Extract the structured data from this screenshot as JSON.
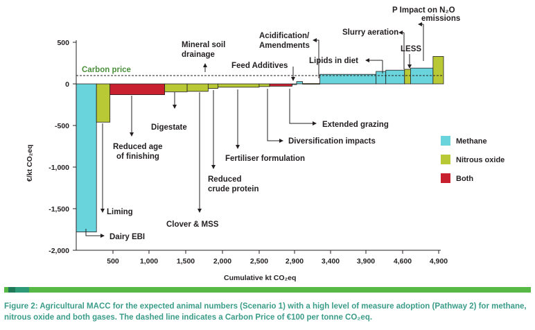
{
  "colors": {
    "methane": "#6ad4dc",
    "nitrous_oxide": "#b8c935",
    "both": "#c8202e",
    "bar_edge": "#231f20",
    "carbon_price": "#4a8f3a",
    "caption": "#3a9c89"
  },
  "chart_data": {
    "type": "bar",
    "subtype": "marginal abatement cost curve (variable-width bars)",
    "xlabel": "Cumulative kt CO₂eq",
    "ylabel": "€/kt CO₂eq",
    "xlim": [
      0,
      4900
    ],
    "ylim": [
      -2000,
      600
    ],
    "yticks": [
      500,
      0,
      -500,
      -1000,
      -1500,
      -2000
    ],
    "ytick_labels": [
      "500",
      "0",
      "-500",
      "-1,000",
      "-1,500",
      "-2,000"
    ],
    "xticks": [
      500,
      1000,
      1500,
      2000,
      2500,
      2900,
      3400,
      3900,
      4600,
      4900
    ],
    "xtick_labels": [
      "500",
      "1,000",
      "1,500",
      "2,000",
      "2,500",
      "2,900",
      "3,400",
      "3,900",
      "4,600",
      "4,900"
    ],
    "carbon_price": {
      "label": "Carbon price",
      "value": 100
    },
    "legend": {
      "placement": "right",
      "items": [
        {
          "name": "Methane",
          "key": "methane"
        },
        {
          "name": "Nitrous oxide",
          "key": "nitrous_oxide"
        },
        {
          "name": "Both",
          "key": "both"
        }
      ]
    },
    "measures": [
      {
        "name": "Dairy EBI",
        "gas": "methane",
        "x0": 0,
        "x1": 270,
        "value": -1780
      },
      {
        "name": "Liming",
        "gas": "nitrous_oxide",
        "x0": 270,
        "x1": 450,
        "value": -460
      },
      {
        "name": "Reduced age of finishing",
        "gas": "both",
        "x0": 450,
        "x1": 1180,
        "value": -130
      },
      {
        "name": "Digestate",
        "gas": "nitrous_oxide",
        "x0": 1180,
        "x1": 1480,
        "value": -95
      },
      {
        "name": "Clover & MSS",
        "gas": "nitrous_oxide",
        "x0": 1480,
        "x1": 1760,
        "value": -90
      },
      {
        "name": "Reduced crude protein",
        "gas": "nitrous_oxide",
        "x0": 1760,
        "x1": 1890,
        "value": -55
      },
      {
        "name": "Fertiliser formulation",
        "gas": "nitrous_oxide",
        "x0": 1890,
        "x1": 2440,
        "value": -40
      },
      {
        "name": "Diversification impacts",
        "gas": "nitrous_oxide",
        "x0": 2440,
        "x1": 2580,
        "value": -32
      },
      {
        "name": "Extended grazing",
        "gas": "both",
        "x0": 2580,
        "x1": 2880,
        "value": -28
      },
      {
        "name": "Mineral soil drainage",
        "gas": "methane",
        "x0": 2880,
        "x1": 2940,
        "value": -5
      },
      {
        "name": "Feed Additives",
        "gas": "methane",
        "x0": 2940,
        "x1": 3020,
        "value": 28
      },
      {
        "name": "Acidification/ Amendments",
        "gas": "nitrous_oxide",
        "x0": 3020,
        "x1": 3250,
        "value": 5
      },
      {
        "name": "Lipids in diet",
        "gas": "methane",
        "x0": 3250,
        "x1": 4000,
        "value": 115
      },
      {
        "name": "Slurry aeration",
        "gas": "methane",
        "x0": 4000,
        "x1": 4130,
        "value": 150
      },
      {
        "name": "",
        "gas": "methane",
        "x0": 4130,
        "x1": 4380,
        "value": 165
      },
      {
        "name": "LESS",
        "gas": "nitrous_oxide",
        "x0": 4380,
        "x1": 4460,
        "value": 175
      },
      {
        "name": "",
        "gas": "methane",
        "x0": 4460,
        "x1": 4760,
        "value": 190
      },
      {
        "name": "P Impact on N₂O emissions",
        "gas": "nitrous_oxide",
        "x0": 4760,
        "x1": 4900,
        "value": 330
      }
    ]
  },
  "labels": {
    "dairy_ebi": "Dairy EBI",
    "liming": "Liming",
    "reduced_age_1": "Reduced age",
    "reduced_age_2": "of finishing",
    "digestate": "Digestate",
    "clover": "Clover & MSS",
    "reduced_cp_1": "Reduced",
    "reduced_cp_2": "crude protein",
    "fertiliser": "Fertiliser formulation",
    "diversification": "Diversification impacts",
    "extended_grazing": "Extended grazing",
    "mineral_soil_1": "Mineral soil",
    "mineral_soil_2": "drainage",
    "feed_additives": "Feed Additives",
    "acidification_1": "Acidification/",
    "acidification_2": "Amendments",
    "lipids": "Lipids in diet",
    "slurry": "Slurry aeration",
    "less": "LESS",
    "p_impact_1": "P Impact on N₂O",
    "p_impact_2": "emissions"
  },
  "caption": "Figure 2: Agricultural MACC for the expected animal numbers (Scenario 1) with a high level of measure adoption (Pathway 2) for methane, nitrous oxide and both gases. The dashed line indicates a Carbon Price of €100 per tonne CO₂eq."
}
